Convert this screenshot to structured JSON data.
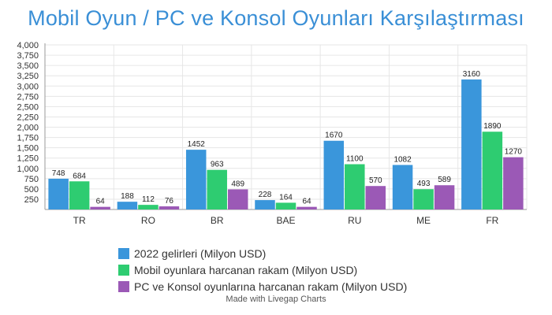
{
  "title": "Mobil Oyun / PC ve Konsol Oyunları Karşılaştırması",
  "footer": "Made with Livegap Charts",
  "chart_data": {
    "type": "bar",
    "title": "Mobil Oyun / PC ve Konsol Oyunları Karşılaştırması",
    "categories": [
      "TR",
      "RO",
      "BR",
      "BAE",
      "RU",
      "ME",
      "FR"
    ],
    "series": [
      {
        "name": "2022 gelirleri (Milyon USD)",
        "color": "#3a96db",
        "values": [
          748,
          188,
          1452,
          228,
          1670,
          1082,
          3160
        ]
      },
      {
        "name": "Mobil oyunlara harcanan rakam (Milyon USD)",
        "color": "#2ecc71",
        "values": [
          684,
          112,
          963,
          164,
          1100,
          493,
          1890
        ]
      },
      {
        "name": "PC ve Konsol oyunlarına harcanan rakam (Milyon USD)",
        "color": "#9b59b6",
        "values": [
          64,
          76,
          489,
          64,
          570,
          589,
          1270
        ]
      }
    ],
    "y_ticks": [
      "250",
      "500",
      "750",
      "1,000",
      "1,250",
      "1,500",
      "1,750",
      "2,000",
      "2,250",
      "2,500",
      "2,750",
      "3,000",
      "3,250",
      "3,500",
      "3,750",
      "4,000"
    ],
    "ylim": [
      0,
      4000
    ],
    "grid": true,
    "legend_position": "bottom"
  }
}
